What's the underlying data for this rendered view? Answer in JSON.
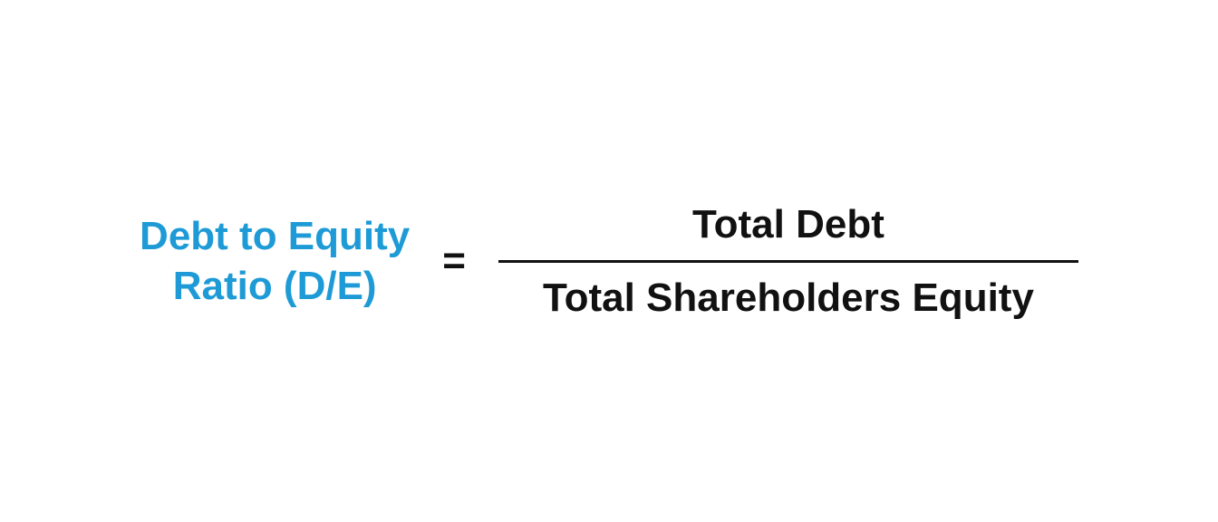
{
  "formula": {
    "label_line1": "Debt to Equity",
    "label_line2": "Ratio (D/E)",
    "equals": "=",
    "numerator": "Total Debt",
    "denominator": "Total Shareholders Equity",
    "label_color": "#1e9bd6",
    "text_color": "#111111",
    "background_color": "#ffffff",
    "font_size": 44,
    "font_weight": 700,
    "fraction_line_width": 640,
    "fraction_line_height": 3
  }
}
